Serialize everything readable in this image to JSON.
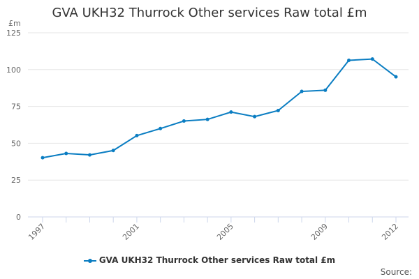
{
  "chart_data": {
    "type": "line",
    "title": "GVA UKH32 Thurrock Other services Raw total £m",
    "ylabel": "£m",
    "xlabel": "",
    "x": [
      1997,
      1998,
      1999,
      2000,
      2001,
      2002,
      2003,
      2004,
      2005,
      2006,
      2007,
      2008,
      2009,
      2010,
      2011,
      2012
    ],
    "x_tick_labels": [
      "1997",
      "2001",
      "2005",
      "2009",
      "2012"
    ],
    "y_ticks": [
      0,
      25,
      50,
      75,
      100,
      125
    ],
    "ylim": [
      0,
      125
    ],
    "grid": true,
    "legend_position": "bottom",
    "series": [
      {
        "name": "GVA UKH32 Thurrock Other services Raw total £m",
        "color": "#0a7dc2",
        "values": [
          40.2,
          43.1,
          42.1,
          45.1,
          55.2,
          60.0,
          65.1,
          66.2,
          71.2,
          68.1,
          72.2,
          85.2,
          86.0,
          106.3,
          107.2,
          95.1
        ]
      }
    ],
    "source_label": "Source:"
  }
}
